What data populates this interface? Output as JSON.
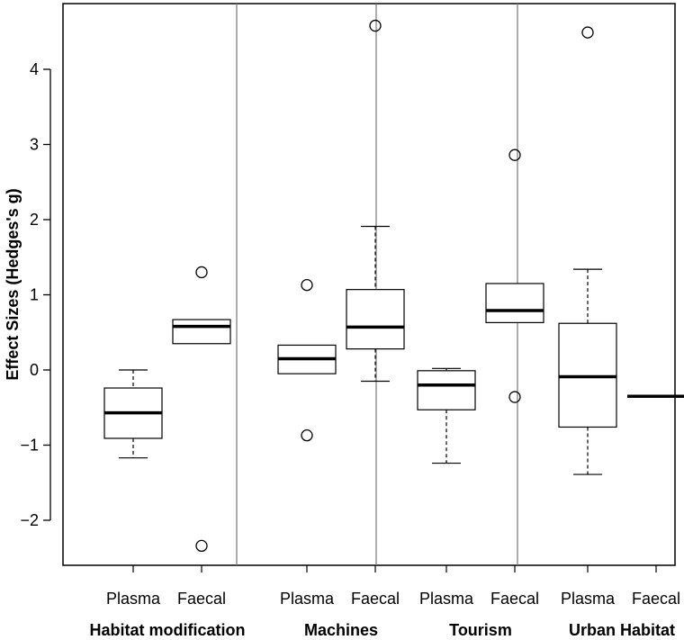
{
  "chart_data": {
    "type": "boxplot",
    "ylabel": "Effect Sizes (Hedges's g)",
    "ylim": [
      -2.6,
      4.9
    ],
    "yticks": [
      {
        "value": -2,
        "label": "−2"
      },
      {
        "value": -1,
        "label": "−1"
      },
      {
        "value": 0,
        "label": "0"
      },
      {
        "value": 1,
        "label": "1"
      },
      {
        "value": 2,
        "label": "2"
      },
      {
        "value": 3,
        "label": "3"
      },
      {
        "value": 4,
        "label": "4"
      }
    ],
    "groups": [
      {
        "name": "Habitat modification",
        "boxes": [
          {
            "label": "Plasma",
            "whisker_low": -1.17,
            "q1": -0.91,
            "median": -0.57,
            "q3": -0.24,
            "whisker_high": 0.0,
            "outliers": []
          },
          {
            "label": "Faecal",
            "whisker_low": 0.35,
            "q1": 0.35,
            "median": 0.58,
            "q3": 0.67,
            "whisker_high": 0.67,
            "outliers": [
              1.3,
              -2.34
            ]
          }
        ]
      },
      {
        "name": "Machines",
        "boxes": [
          {
            "label": "Plasma",
            "whisker_low": -0.05,
            "q1": -0.05,
            "median": 0.15,
            "q3": 0.33,
            "whisker_high": 0.33,
            "outliers": [
              1.13,
              -0.87
            ]
          },
          {
            "label": "Faecal",
            "whisker_low": -0.15,
            "q1": 0.28,
            "median": 0.57,
            "q3": 1.07,
            "whisker_high": 1.91,
            "outliers": [
              4.58
            ]
          }
        ]
      },
      {
        "name": "Tourism",
        "boxes": [
          {
            "label": "Plasma",
            "whisker_low": -1.24,
            "q1": -0.53,
            "median": -0.2,
            "q3": -0.01,
            "whisker_high": 0.02,
            "outliers": []
          },
          {
            "label": "Faecal",
            "whisker_low": 0.63,
            "q1": 0.63,
            "median": 0.79,
            "q3": 1.15,
            "whisker_high": 1.15,
            "outliers": [
              2.86,
              -0.36
            ]
          }
        ]
      },
      {
        "name": "Urban Habitat",
        "boxes": [
          {
            "label": "Plasma",
            "whisker_low": -1.39,
            "q1": -0.76,
            "median": -0.09,
            "q3": 0.62,
            "whisker_high": 1.34,
            "outliers": [
              4.49
            ]
          },
          {
            "label": "Faecal",
            "whisker_low": -0.35,
            "q1": -0.35,
            "median": -0.35,
            "q3": -0.35,
            "whisker_high": -0.35,
            "outliers": []
          }
        ]
      }
    ]
  }
}
